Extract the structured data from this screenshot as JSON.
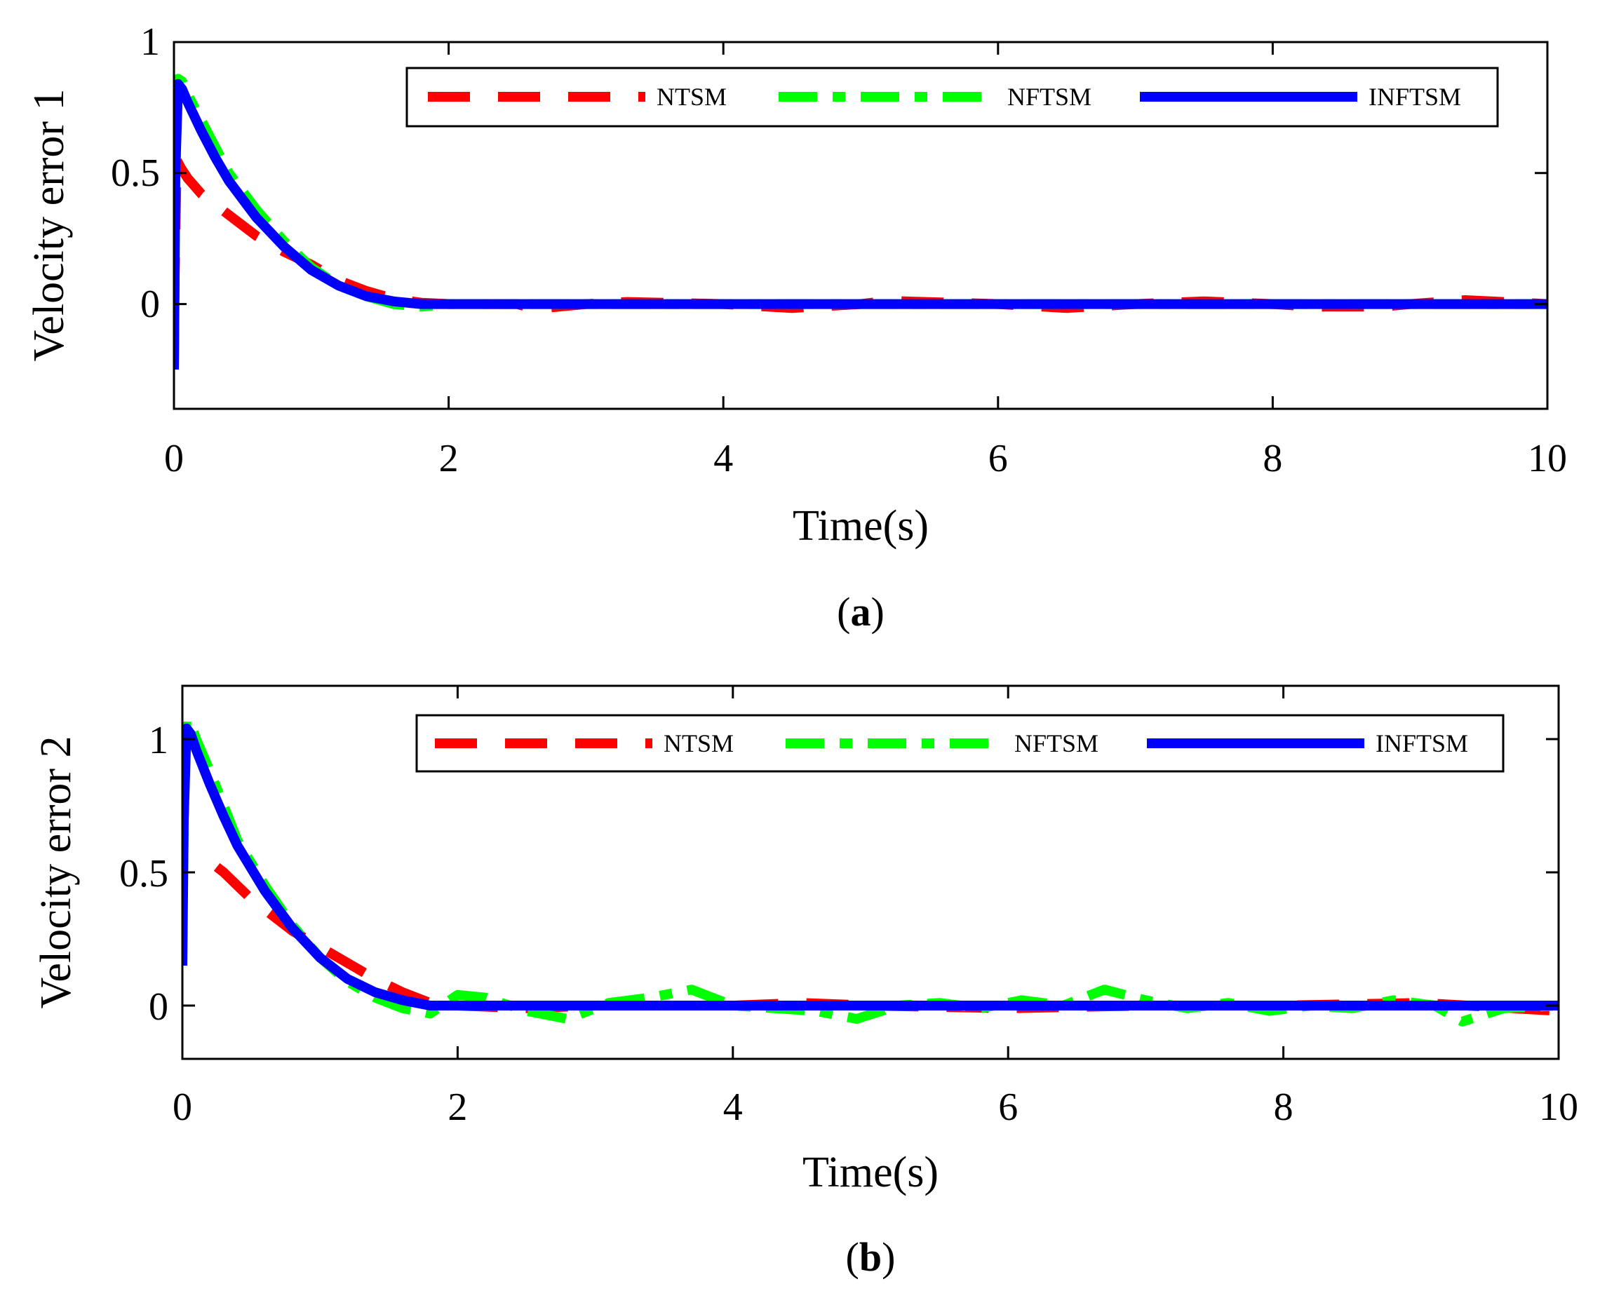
{
  "chart_data": [
    {
      "type": "line",
      "id": "a",
      "caption": "a",
      "xlabel": "Time(s)",
      "ylabel": "Velocity error 1",
      "xlim": [
        0,
        10
      ],
      "ylim": [
        -0.4,
        1.0
      ],
      "xticks": [
        "0",
        "2",
        "4",
        "6",
        "8",
        "10"
      ],
      "yticks": [
        "0",
        "0.5",
        "1"
      ],
      "legend_position": "top-right",
      "series": [
        {
          "name": "NTSM",
          "color": "#ff0000",
          "style": "dashed",
          "x": [
            0,
            0.005,
            0.02,
            0.05,
            0.1,
            0.2,
            0.3,
            0.4,
            0.5,
            0.6,
            0.8,
            1.0,
            1.2,
            1.4,
            1.6,
            1.8,
            2.0,
            2.5,
            2.6,
            2.7,
            3.0,
            3.3,
            4.0,
            4.5,
            5.0,
            5.2,
            6.0,
            6.5,
            7.0,
            7.5,
            8.0,
            8.3,
            8.8,
            9.0,
            9.4,
            10.0
          ],
          "values": [
            -0.25,
            0.1,
            0.55,
            0.52,
            0.48,
            0.42,
            0.38,
            0.34,
            0.3,
            0.26,
            0.2,
            0.15,
            0.09,
            0.05,
            0.02,
            0.005,
            0.0,
            0.0,
            -0.015,
            -0.015,
            0.0,
            0.008,
            0.0,
            -0.015,
            0.0,
            0.012,
            0.0,
            -0.015,
            0.0,
            0.01,
            0.0,
            -0.01,
            -0.01,
            0.0,
            0.015,
            0.0
          ]
        },
        {
          "name": "NFTSM",
          "color": "#00ff00",
          "style": "dash-dot",
          "x": [
            0,
            0.01,
            0.03,
            0.06,
            0.1,
            0.2,
            0.3,
            0.4,
            0.6,
            0.8,
            1.0,
            1.2,
            1.4,
            1.6,
            1.8,
            2.0,
            4.0,
            6.0,
            8.0,
            10.0
          ],
          "values": [
            -0.2,
            0.5,
            0.86,
            0.85,
            0.8,
            0.7,
            0.6,
            0.5,
            0.36,
            0.24,
            0.14,
            0.07,
            0.03,
            0.0,
            -0.01,
            0.0,
            0.0,
            0.0,
            0.0,
            0.0
          ]
        },
        {
          "name": "INFTSM",
          "color": "#0000ff",
          "style": "solid",
          "x": [
            0,
            0.01,
            0.03,
            0.06,
            0.1,
            0.2,
            0.3,
            0.4,
            0.6,
            0.8,
            1.0,
            1.2,
            1.4,
            1.6,
            1.8,
            2.0,
            4.0,
            6.0,
            8.0,
            10.0
          ],
          "values": [
            -0.25,
            0.5,
            0.84,
            0.82,
            0.77,
            0.66,
            0.56,
            0.47,
            0.33,
            0.22,
            0.13,
            0.07,
            0.03,
            0.01,
            0.0,
            0.0,
            0.0,
            0.0,
            0.0,
            0.0
          ]
        }
      ]
    },
    {
      "type": "line",
      "id": "b",
      "caption": "b",
      "xlabel": "Time(s)",
      "ylabel": "Velocity error 2",
      "xlim": [
        0,
        10
      ],
      "ylim": [
        -0.2,
        1.2
      ],
      "xticks": [
        "0",
        "2",
        "4",
        "6",
        "8",
        "10"
      ],
      "yticks": [
        "0",
        "0.5",
        "1"
      ],
      "legend_position": "top-right",
      "series": [
        {
          "name": "NTSM",
          "color": "#ff0000",
          "style": "dashed",
          "x": [
            0.25,
            0.3,
            0.4,
            0.5,
            0.6,
            0.8,
            1.0,
            1.2,
            1.4,
            1.6,
            1.8,
            2.0,
            2.5,
            3.0,
            4.0,
            4.5,
            5.0,
            6.0,
            7.0,
            8.0,
            9.0,
            10.0
          ],
          "values": [
            0.52,
            0.5,
            0.45,
            0.4,
            0.36,
            0.28,
            0.22,
            0.16,
            0.1,
            0.05,
            0.01,
            0.0,
            -0.01,
            0.0,
            0.0,
            0.01,
            0.0,
            -0.01,
            0.0,
            0.0,
            0.01,
            -0.02
          ]
        },
        {
          "name": "NFTSM",
          "color": "#00ff00",
          "style": "dash-dot",
          "x": [
            0,
            0.01,
            0.03,
            0.06,
            0.1,
            0.2,
            0.3,
            0.4,
            0.6,
            0.8,
            1.0,
            1.2,
            1.4,
            1.6,
            1.8,
            2.0,
            2.2,
            2.5,
            2.8,
            3.1,
            3.4,
            3.7,
            4.0,
            4.3,
            4.6,
            4.9,
            5.2,
            5.5,
            5.8,
            6.1,
            6.4,
            6.7,
            7.0,
            7.3,
            7.6,
            7.9,
            8.2,
            8.5,
            8.8,
            9.1,
            9.3,
            9.6,
            10.0
          ],
          "values": [
            0.2,
            0.7,
            1.07,
            1.06,
            1.0,
            0.88,
            0.75,
            0.62,
            0.45,
            0.3,
            0.18,
            0.09,
            0.03,
            -0.01,
            -0.03,
            0.04,
            0.03,
            -0.02,
            -0.05,
            0.01,
            0.03,
            0.06,
            0.0,
            -0.01,
            -0.02,
            -0.05,
            0.0,
            0.01,
            -0.01,
            0.02,
            0.0,
            0.06,
            0.02,
            -0.01,
            0.01,
            -0.02,
            0.0,
            -0.01,
            0.02,
            0.0,
            -0.06,
            -0.01,
            0.0
          ]
        },
        {
          "name": "INFTSM",
          "color": "#0000ff",
          "style": "solid",
          "x": [
            0,
            0.01,
            0.03,
            0.06,
            0.1,
            0.2,
            0.3,
            0.4,
            0.6,
            0.8,
            1.0,
            1.2,
            1.4,
            1.6,
            1.8,
            2.0,
            4.0,
            6.0,
            8.0,
            10.0
          ],
          "values": [
            0.15,
            0.7,
            1.04,
            1.02,
            0.96,
            0.83,
            0.71,
            0.6,
            0.43,
            0.29,
            0.18,
            0.1,
            0.05,
            0.02,
            0.0,
            0.0,
            0.0,
            0.0,
            0.0,
            0.0
          ]
        }
      ]
    }
  ]
}
